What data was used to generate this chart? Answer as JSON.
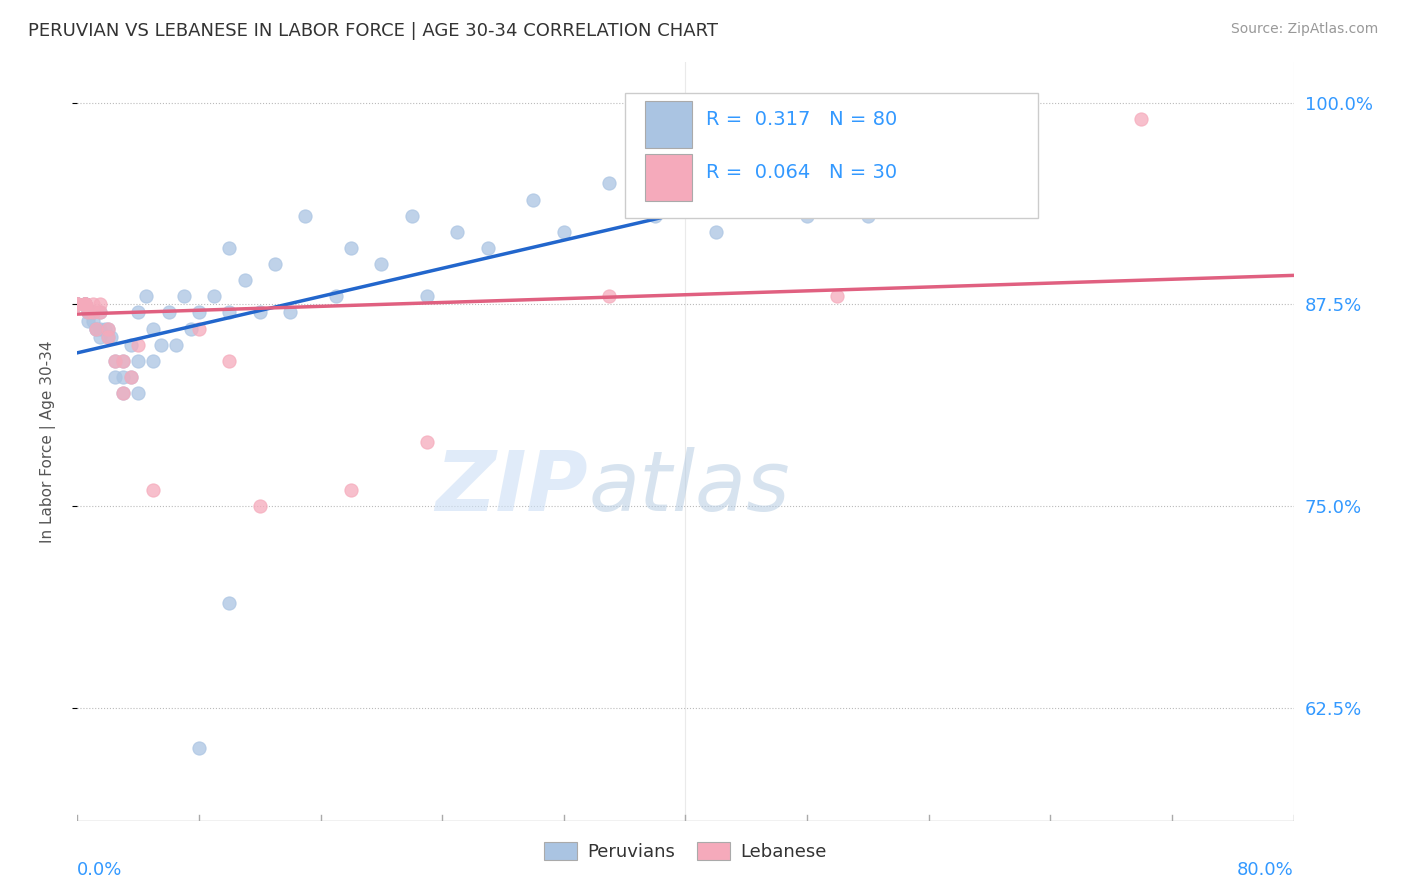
{
  "title": "PERUVIAN VS LEBANESE IN LABOR FORCE | AGE 30-34 CORRELATION CHART",
  "source_text": "Source: ZipAtlas.com",
  "ylabel": "In Labor Force | Age 30-34",
  "xmin": 0.0,
  "xmax": 0.8,
  "ymin": 0.555,
  "ymax": 1.025,
  "yticks": [
    0.625,
    0.75,
    0.875,
    1.0
  ],
  "ytick_labels": [
    "62.5%",
    "75.0%",
    "87.5%",
    "100.0%"
  ],
  "peruvian_color": "#aac4e2",
  "lebanese_color": "#f5aabb",
  "trend_peruvian_color": "#2266cc",
  "trend_lebanese_color": "#e06080",
  "legend_R_peruvian": "0.317",
  "legend_N_peruvian": "80",
  "legend_R_lebanese": "0.064",
  "legend_N_lebanese": "30",
  "watermark_zip": "ZIP",
  "watermark_atlas": "atlas",
  "peru_trend_x": [
    0.0,
    0.55
  ],
  "peru_trend_y": [
    0.845,
    0.965
  ],
  "leb_trend_x": [
    0.0,
    0.8
  ],
  "leb_trend_y": [
    0.869,
    0.893
  ],
  "peru_x": [
    0.0,
    0.0,
    0.0,
    0.0,
    0.0,
    0.0,
    0.0,
    0.0,
    0.005,
    0.005,
    0.005,
    0.005,
    0.005,
    0.005,
    0.005,
    0.005,
    0.007,
    0.007,
    0.007,
    0.01,
    0.01,
    0.01,
    0.01,
    0.012,
    0.012,
    0.015,
    0.015,
    0.015,
    0.018,
    0.02,
    0.02,
    0.022,
    0.025,
    0.025,
    0.03,
    0.03,
    0.03,
    0.035,
    0.035,
    0.04,
    0.04,
    0.04,
    0.045,
    0.05,
    0.05,
    0.055,
    0.06,
    0.065,
    0.07,
    0.075,
    0.08,
    0.09,
    0.1,
    0.1,
    0.11,
    0.12,
    0.13,
    0.14,
    0.15,
    0.17,
    0.18,
    0.2,
    0.22,
    0.23,
    0.25,
    0.27,
    0.3,
    0.32,
    0.35,
    0.38,
    0.4,
    0.42,
    0.45,
    0.48,
    0.5,
    0.52,
    0.54,
    0.55,
    0.1,
    0.08
  ],
  "peru_y": [
    0.875,
    0.875,
    0.875,
    0.875,
    0.875,
    0.875,
    0.875,
    0.875,
    0.875,
    0.875,
    0.875,
    0.875,
    0.875,
    0.875,
    0.875,
    0.875,
    0.87,
    0.87,
    0.865,
    0.87,
    0.87,
    0.87,
    0.865,
    0.86,
    0.86,
    0.87,
    0.86,
    0.855,
    0.86,
    0.855,
    0.86,
    0.855,
    0.84,
    0.83,
    0.84,
    0.83,
    0.82,
    0.85,
    0.83,
    0.87,
    0.84,
    0.82,
    0.88,
    0.86,
    0.84,
    0.85,
    0.87,
    0.85,
    0.88,
    0.86,
    0.87,
    0.88,
    0.91,
    0.87,
    0.89,
    0.87,
    0.9,
    0.87,
    0.93,
    0.88,
    0.91,
    0.9,
    0.93,
    0.88,
    0.92,
    0.91,
    0.94,
    0.92,
    0.95,
    0.93,
    0.96,
    0.92,
    0.95,
    0.93,
    0.97,
    0.93,
    0.95,
    0.97,
    0.69,
    0.6
  ],
  "leb_x": [
    0.0,
    0.0,
    0.0,
    0.0,
    0.005,
    0.005,
    0.005,
    0.005,
    0.007,
    0.01,
    0.01,
    0.012,
    0.015,
    0.015,
    0.02,
    0.02,
    0.025,
    0.03,
    0.03,
    0.035,
    0.04,
    0.05,
    0.08,
    0.1,
    0.12,
    0.18,
    0.23,
    0.35,
    0.5,
    0.7
  ],
  "leb_y": [
    0.875,
    0.875,
    0.875,
    0.875,
    0.875,
    0.875,
    0.875,
    0.875,
    0.87,
    0.875,
    0.87,
    0.86,
    0.875,
    0.87,
    0.86,
    0.855,
    0.84,
    0.84,
    0.82,
    0.83,
    0.85,
    0.76,
    0.86,
    0.84,
    0.75,
    0.76,
    0.79,
    0.88,
    0.88,
    0.99
  ]
}
